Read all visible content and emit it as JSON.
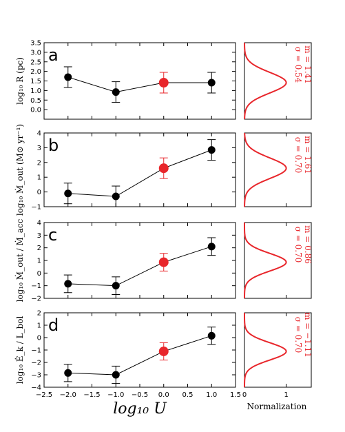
{
  "colors": {
    "primary": "#000000",
    "highlight": "#e8262b"
  },
  "chart_data": [
    {
      "type": "scatter",
      "panel_label": "a",
      "ylabel": "log₁₀ R (pc)",
      "x": [
        -2.0,
        -1.0,
        0.0,
        1.0
      ],
      "y": [
        1.7,
        0.92,
        1.41,
        1.41
      ],
      "err": [
        0.54,
        0.54,
        0.54,
        0.54
      ],
      "highlight_index": 2,
      "xlim": [
        -2.5,
        1.5
      ],
      "ylim": [
        -0.5,
        3.5
      ],
      "yticks": [
        "0.0",
        "0.5",
        "1.0",
        "1.5",
        "2.0",
        "2.5",
        "3.0",
        "3.5"
      ],
      "yticks_values": [
        0.0,
        0.5,
        1.0,
        1.5,
        2.0,
        2.5,
        3.0,
        3.5
      ],
      "gauss": {
        "m": 1.41,
        "sigma": 0.54,
        "m_text": "m = 1.41",
        "sigma_text": "σ = 0.54"
      }
    },
    {
      "type": "scatter",
      "panel_label": "b",
      "ylabel": "log₁₀ Ṁ_out (M⊙ yr⁻¹)",
      "x": [
        -2.0,
        -1.0,
        0.0,
        1.0
      ],
      "y": [
        -0.1,
        -0.3,
        1.61,
        2.85
      ],
      "err": [
        0.7,
        0.7,
        0.7,
        0.7
      ],
      "highlight_index": 2,
      "xlim": [
        -2.5,
        1.5
      ],
      "ylim": [
        -1,
        4
      ],
      "yticks": [
        "−1",
        "0",
        "1",
        "2",
        "3",
        "4"
      ],
      "yticks_values": [
        -1,
        0,
        1,
        2,
        3,
        4
      ],
      "gauss": {
        "m": 1.61,
        "sigma": 0.7,
        "m_text": "m = 1.61",
        "sigma_text": "σ = 0.70"
      }
    },
    {
      "type": "scatter",
      "panel_label": "c",
      "ylabel": "log₁₀ Ṁ_out / Ṁ_acc",
      "x": [
        -2.0,
        -1.0,
        0.0,
        1.0
      ],
      "y": [
        -0.85,
        -1.0,
        0.86,
        2.1
      ],
      "err": [
        0.7,
        0.7,
        0.7,
        0.7
      ],
      "highlight_index": 2,
      "xlim": [
        -2.5,
        1.5
      ],
      "ylim": [
        -2,
        4
      ],
      "yticks": [
        "−2",
        "−1",
        "0",
        "1",
        "2",
        "3",
        "4"
      ],
      "yticks_values": [
        -2,
        -1,
        0,
        1,
        2,
        3,
        4
      ],
      "gauss": {
        "m": 0.86,
        "sigma": 0.7,
        "m_text": "m = 0.86",
        "sigma_text": "σ = 0.70"
      }
    },
    {
      "type": "scatter",
      "panel_label": "d",
      "ylabel": "log₁₀ Ė_k / L_bol",
      "x": [
        -2.0,
        -1.0,
        0.0,
        1.0
      ],
      "y": [
        -2.85,
        -3.0,
        -1.11,
        0.15
      ],
      "err": [
        0.7,
        0.7,
        0.7,
        0.7
      ],
      "highlight_index": 2,
      "xlim": [
        -2.5,
        1.5
      ],
      "ylim": [
        -4,
        2
      ],
      "yticks": [
        "−4",
        "−3",
        "−2",
        "−1",
        "0",
        "1",
        "2"
      ],
      "yticks_values": [
        -4,
        -3,
        -2,
        -1,
        0,
        1,
        2
      ],
      "gauss": {
        "m": -1.11,
        "sigma": 0.7,
        "m_text": "m = −1.11",
        "sigma_text": "σ = 0.70"
      }
    }
  ],
  "xaxis": {
    "label": "log₁₀ U",
    "ticks": [
      "−2.5",
      "−2.0",
      "−1.5",
      "−1.0",
      "−0.5",
      "0.0",
      "0.5",
      "1.0",
      "1.5"
    ],
    "tick_values": [
      -2.5,
      -2.0,
      -1.5,
      -1.0,
      -0.5,
      0.0,
      0.5,
      1.0,
      1.5
    ]
  },
  "norm_axis": {
    "label": "Normalization",
    "ticks": [
      "0",
      "1"
    ],
    "tick_values": [
      0,
      1
    ],
    "xlim": [
      0,
      1.6
    ]
  }
}
